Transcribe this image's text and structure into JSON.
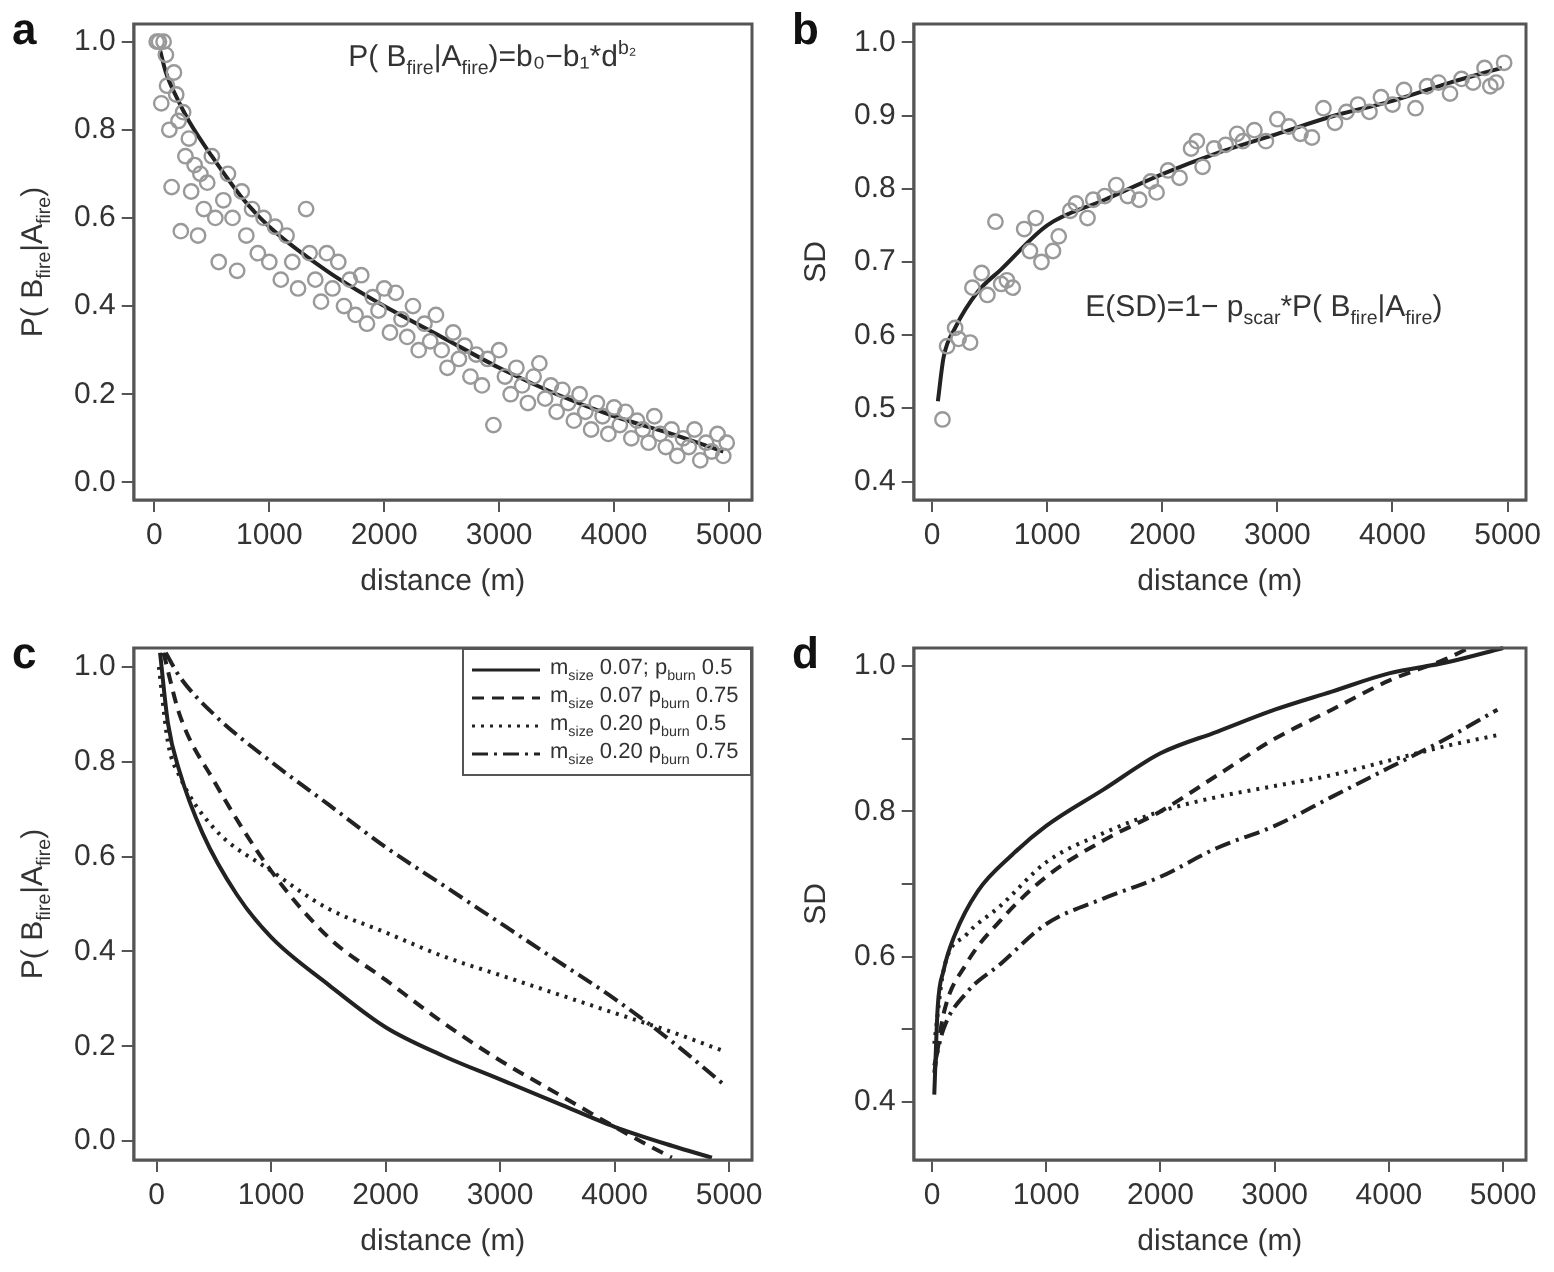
{
  "chart_data": [
    {
      "type": "scatter",
      "title": "a",
      "xlabel": "distance (m)",
      "ylabel": "P( B$_{fire}$|A$_{fire}$)",
      "annotations": [
        "P( B$_{fire}$|A$_{fire}$)=b₀−b₁*d$^{b₂}$"
      ],
      "xlim": [
        -180,
        5200
      ],
      "ylim": [
        -0.04,
        1.04
      ],
      "xticks": [
        0,
        1000,
        2000,
        3000,
        4000,
        5000
      ],
      "yticks": [
        {
          "value": 0,
          "label": "0.0"
        },
        0.2,
        0.4,
        0.6,
        0.8,
        {
          "value": 1,
          "label": "1.0"
        }
      ],
      "grid": false,
      "series": [
        {
          "type": "scatter",
          "marker": "circle",
          "color": "#999999",
          "x": [
            20,
            40,
            60,
            80,
            100,
            110,
            130,
            150,
            170,
            190,
            210,
            230,
            250,
            270,
            300,
            320,
            350,
            380,
            400,
            430,
            460,
            500,
            530,
            560,
            600,
            640,
            680,
            720,
            760,
            800,
            850,
            900,
            950,
            1000,
            1050,
            1100,
            1150,
            1200,
            1250,
            1320,
            1350,
            1400,
            1450,
            1500,
            1550,
            1600,
            1650,
            1700,
            1750,
            1800,
            1850,
            1900,
            1950,
            2000,
            2050,
            2100,
            2150,
            2200,
            2250,
            2300,
            2350,
            2400,
            2450,
            2500,
            2550,
            2600,
            2650,
            2700,
            2750,
            2800,
            2850,
            2900,
            2950,
            3000,
            3050,
            3100,
            3150,
            3200,
            3250,
            3300,
            3350,
            3400,
            3450,
            3500,
            3550,
            3600,
            3650,
            3700,
            3750,
            3800,
            3850,
            3900,
            3950,
            4000,
            4050,
            4100,
            4150,
            4200,
            4250,
            4300,
            4350,
            4400,
            4450,
            4500,
            4550,
            4600,
            4650,
            4700,
            4750,
            4800,
            4850,
            4900,
            4950,
            4980
          ],
          "values": [
            1.0,
            1.0,
            0.86,
            1.0,
            0.97,
            0.9,
            0.8,
            0.67,
            0.93,
            0.88,
            0.82,
            0.57,
            0.84,
            0.74,
            0.78,
            0.66,
            0.72,
            0.56,
            0.7,
            0.62,
            0.68,
            0.74,
            0.6,
            0.5,
            0.64,
            0.7,
            0.6,
            0.48,
            0.66,
            0.56,
            0.62,
            0.52,
            0.6,
            0.5,
            0.58,
            0.46,
            0.56,
            0.5,
            0.44,
            0.62,
            0.52,
            0.46,
            0.41,
            0.52,
            0.44,
            0.5,
            0.4,
            0.46,
            0.38,
            0.47,
            0.36,
            0.42,
            0.39,
            0.44,
            0.34,
            0.43,
            0.37,
            0.33,
            0.4,
            0.3,
            0.36,
            0.32,
            0.38,
            0.3,
            0.26,
            0.34,
            0.28,
            0.31,
            0.24,
            0.29,
            0.22,
            0.28,
            0.13,
            0.3,
            0.24,
            0.2,
            0.26,
            0.22,
            0.18,
            0.24,
            0.27,
            0.19,
            0.22,
            0.16,
            0.21,
            0.18,
            0.14,
            0.2,
            0.16,
            0.12,
            0.18,
            0.15,
            0.11,
            0.17,
            0.13,
            0.16,
            0.1,
            0.14,
            0.12,
            0.09,
            0.15,
            0.11,
            0.08,
            0.12,
            0.06,
            0.1,
            0.08,
            0.12,
            0.05,
            0.09,
            0.07,
            0.11,
            0.06,
            0.09
          ]
        },
        {
          "type": "line",
          "color": "#222222",
          "x": [
            50,
            100,
            200,
            300,
            500,
            750,
            1000,
            1500,
            2000,
            2500,
            3000,
            3500,
            4000,
            4500,
            4950
          ],
          "values": [
            0.98,
            0.93,
            0.87,
            0.82,
            0.74,
            0.65,
            0.58,
            0.48,
            0.4,
            0.33,
            0.26,
            0.2,
            0.15,
            0.11,
            0.07
          ]
        }
      ]
    },
    {
      "type": "scatter",
      "title": "b",
      "xlabel": "distance (m)",
      "ylabel": "SD",
      "annotations": [
        "E(SD)=1− p$_{scar}$*P( B$_{fire}$|A$_{fire}$)"
      ],
      "xlim": [
        -160,
        5160
      ],
      "ylim": [
        0.375,
        1.025
      ],
      "xticks": [
        0,
        1000,
        2000,
        3000,
        4000,
        5000
      ],
      "yticks": [
        0.4,
        0.5,
        0.6,
        0.7,
        0.8,
        0.9,
        {
          "value": 1,
          "label": "1.0"
        }
      ],
      "grid": false,
      "series": [
        {
          "type": "scatter",
          "marker": "circle",
          "color": "#999999",
          "x": [
            90,
            130,
            200,
            230,
            330,
            350,
            430,
            480,
            550,
            600,
            650,
            700,
            800,
            850,
            900,
            950,
            1050,
            1100,
            1200,
            1250,
            1350,
            1400,
            1500,
            1600,
            1700,
            1800,
            1900,
            1950,
            2050,
            2150,
            2250,
            2300,
            2350,
            2450,
            2550,
            2650,
            2700,
            2800,
            2900,
            3000,
            3100,
            3200,
            3300,
            3400,
            3500,
            3600,
            3700,
            3800,
            3900,
            4000,
            4100,
            4200,
            4300,
            4400,
            4500,
            4600,
            4700,
            4800,
            4850,
            4900,
            4970
          ],
          "values": [
            0.485,
            0.585,
            0.61,
            0.595,
            0.59,
            0.665,
            0.685,
            0.655,
            0.755,
            0.67,
            0.675,
            0.665,
            0.745,
            0.715,
            0.76,
            0.7,
            0.715,
            0.735,
            0.77,
            0.78,
            0.76,
            0.785,
            0.79,
            0.805,
            0.79,
            0.785,
            0.81,
            0.795,
            0.825,
            0.815,
            0.855,
            0.865,
            0.83,
            0.855,
            0.86,
            0.875,
            0.865,
            0.88,
            0.865,
            0.895,
            0.885,
            0.875,
            0.87,
            0.91,
            0.89,
            0.905,
            0.915,
            0.905,
            0.925,
            0.915,
            0.935,
            0.91,
            0.94,
            0.945,
            0.93,
            0.95,
            0.945,
            0.965,
            0.94,
            0.945,
            0.972
          ]
        },
        {
          "type": "line",
          "color": "#222222",
          "x": [
            50,
            100,
            200,
            400,
            600,
            1000,
            1500,
            2000,
            2500,
            3000,
            3500,
            4000,
            4500,
            4950
          ],
          "values": [
            0.51,
            0.57,
            0.61,
            0.66,
            0.69,
            0.75,
            0.785,
            0.82,
            0.85,
            0.875,
            0.9,
            0.92,
            0.945,
            0.965
          ]
        }
      ]
    },
    {
      "type": "line",
      "title": "c",
      "xlabel": "distance (m)",
      "ylabel": "P( B$_{fire}$|A$_{fire}$)",
      "xlim": [
        -200,
        5200
      ],
      "ylim": [
        -0.04,
        1.04
      ],
      "xticks": [
        0,
        1000,
        2000,
        3000,
        4000,
        5000
      ],
      "yticks": [
        {
          "value": 0,
          "label": "0.0"
        },
        0.2,
        0.4,
        0.6,
        0.8,
        {
          "value": 1,
          "label": "1.0"
        }
      ],
      "grid": false,
      "legend": "top right",
      "series": [
        {
          "name": "m$_{size}$ 0.07; p$_{burn}$ 0.5",
          "color": "#222222",
          "line_style": "solid",
          "x": [
            30,
            100,
            200,
            400,
            700,
            1000,
            1500,
            2000,
            2500,
            3000,
            3500,
            4000,
            4500,
            4850
          ],
          "values": [
            1.03,
            0.88,
            0.78,
            0.65,
            0.52,
            0.43,
            0.33,
            0.24,
            0.18,
            0.13,
            0.08,
            0.03,
            -0.01,
            -0.035
          ]
        },
        {
          "name": "m$_{size}$ 0.07 p$_{burn}$ 0.75",
          "color": "#222222",
          "line_style": "dashed",
          "x": [
            60,
            200,
            500,
            1000,
            1500,
            2000,
            2500,
            3000,
            3500,
            4000,
            4300,
            4500
          ],
          "values": [
            1.03,
            0.9,
            0.76,
            0.57,
            0.43,
            0.34,
            0.25,
            0.17,
            0.1,
            0.03,
            -0.01,
            -0.035
          ]
        },
        {
          "name": "m$_{size}$ 0.20 p$_{burn}$ 0.5",
          "color": "#222222",
          "line_style": "dotted",
          "x": [
            20,
            100,
            200,
            500,
            1000,
            1500,
            2000,
            2500,
            3000,
            3500,
            4000,
            4500,
            4950
          ],
          "values": [
            1.0,
            0.84,
            0.77,
            0.66,
            0.57,
            0.49,
            0.44,
            0.39,
            0.35,
            0.31,
            0.27,
            0.23,
            0.19
          ]
        },
        {
          "name": "m$_{size}$ 0.20 p$_{burn}$ 0.75",
          "color": "#222222",
          "line_style": "dashdot",
          "x": [
            80,
            200,
            500,
            1000,
            1500,
            2000,
            2500,
            3000,
            3500,
            4000,
            4500,
            4950
          ],
          "values": [
            1.03,
            0.98,
            0.9,
            0.8,
            0.71,
            0.62,
            0.54,
            0.46,
            0.38,
            0.3,
            0.21,
            0.12
          ]
        }
      ]
    },
    {
      "type": "line",
      "title": "d",
      "xlabel": "distance (m)",
      "ylabel": "SD",
      "xlim": [
        -160,
        5200
      ],
      "ylim": [
        0.32,
        1.025
      ],
      "xticks": [
        0,
        1000,
        2000,
        3000,
        4000,
        5000
      ],
      "yticks": [
        0.4,
        {
          "value": 0.5,
          "label": null
        },
        0.6,
        {
          "value": 0.7,
          "label": null
        },
        0.8,
        {
          "value": 0.9,
          "label": null
        },
        {
          "value": 1,
          "label": "1.0"
        }
      ],
      "grid": false,
      "series": [
        {
          "color": "#222222",
          "line_style": "solid",
          "x": [
            20,
            50,
            100,
            200,
            400,
            700,
            1000,
            1500,
            2000,
            2500,
            3000,
            3500,
            4000,
            4500,
            5000
          ],
          "values": [
            0.41,
            0.53,
            0.58,
            0.63,
            0.69,
            0.74,
            0.78,
            0.83,
            0.88,
            0.91,
            0.94,
            0.965,
            0.99,
            1.005,
            1.025
          ]
        },
        {
          "color": "#222222",
          "line_style": "dashed",
          "x": [
            20,
            100,
            300,
            600,
            1000,
            1500,
            2000,
            2500,
            3000,
            3500,
            4000,
            4500,
            4700
          ],
          "values": [
            0.44,
            0.52,
            0.59,
            0.65,
            0.71,
            0.76,
            0.8,
            0.85,
            0.9,
            0.94,
            0.98,
            1.01,
            1.025
          ]
        },
        {
          "color": "#222222",
          "line_style": "dotted",
          "x": [
            20,
            100,
            300,
            600,
            1000,
            1500,
            2000,
            2500,
            3000,
            3500,
            4000,
            4500,
            4950
          ],
          "values": [
            0.48,
            0.58,
            0.63,
            0.67,
            0.73,
            0.77,
            0.8,
            0.82,
            0.835,
            0.85,
            0.87,
            0.89,
            0.905
          ]
        },
        {
          "color": "#222222",
          "line_style": "dashdot",
          "x": [
            20,
            100,
            300,
            600,
            1000,
            1500,
            2000,
            2500,
            3000,
            3500,
            4000,
            4500,
            4950
          ],
          "values": [
            0.45,
            0.5,
            0.55,
            0.59,
            0.645,
            0.68,
            0.71,
            0.75,
            0.78,
            0.82,
            0.86,
            0.9,
            0.94
          ]
        }
      ]
    }
  ]
}
